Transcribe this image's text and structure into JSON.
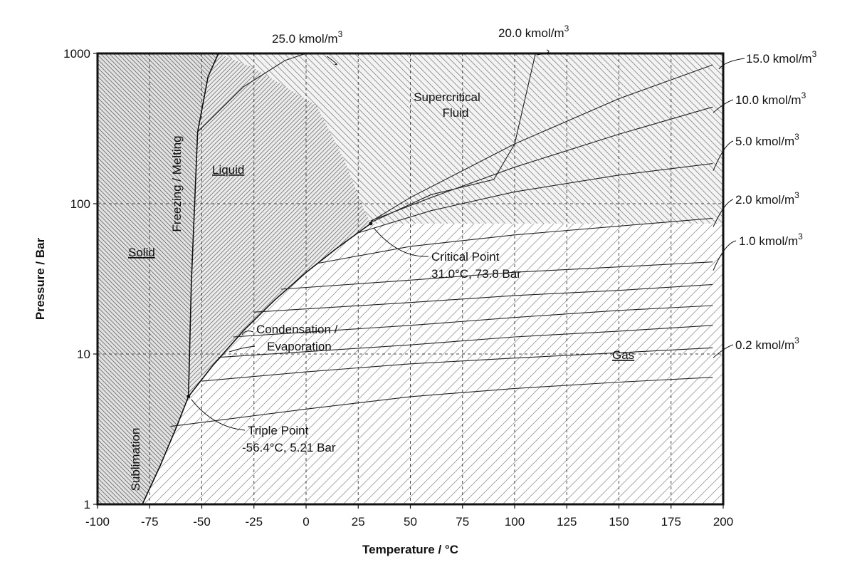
{
  "chart_data": {
    "type": "line",
    "title": "",
    "xlabel": "Temperature / °C",
    "ylabel": "Pressure / Bar",
    "xlim": [
      -100,
      200
    ],
    "ylim": [
      1,
      1000
    ],
    "y_scale": "log",
    "grid": true,
    "x_ticks": [
      "-100",
      "-75",
      "-50",
      "-25",
      "0",
      "25",
      "50",
      "75",
      "100",
      "125",
      "150",
      "175",
      "200"
    ],
    "y_ticks": [
      "1",
      "10",
      "100",
      "1000"
    ],
    "regions": [
      {
        "label": "Solid"
      },
      {
        "label": "Liquid"
      },
      {
        "label": "Supercritical Fluid"
      },
      {
        "label": "Gas"
      }
    ],
    "phase_boundaries": [
      {
        "label": "Freezing / Melting",
        "x": [
          -56.4,
          -55,
          -52,
          -47,
          -42
        ],
        "y": [
          5.21,
          30,
          300,
          700,
          1000
        ]
      },
      {
        "label": "Sublimation",
        "x": [
          -78.5,
          -70,
          -62,
          -56.4
        ],
        "y": [
          1.0,
          1.8,
          3.3,
          5.21
        ]
      },
      {
        "label": "Condensation / Evaporation",
        "x": [
          -56.4,
          -45,
          -30,
          -15,
          0,
          15,
          31.0
        ],
        "y": [
          5.21,
          8.3,
          14.3,
          22.9,
          34.9,
          50.9,
          73.8
        ]
      }
    ],
    "triple_point": {
      "label": "Triple Point",
      "detail": "-56.4°C, 5.21 Bar",
      "x": -56.4,
      "y": 5.21
    },
    "critical_point": {
      "label": "Critical Point",
      "detail": "31.0°C, 73.8 Bar",
      "x": 31.0,
      "y": 73.8
    },
    "isochores": [
      {
        "label": "25.0 kmol/m3",
        "base": "25.0 kmol/m",
        "sup": "3",
        "x": [
          -52,
          -30,
          -10,
          0,
          10
        ],
        "y": [
          300,
          600,
          900,
          1000,
          1000
        ]
      },
      {
        "label": "20.0 kmol/m3",
        "base": "20.0 kmol/m",
        "sup": "3",
        "x": [
          31,
          60,
          90,
          100,
          110
        ],
        "y": [
          75,
          115,
          145,
          250,
          1000
        ]
      },
      {
        "label": "15.0 kmol/m3",
        "base": "15.0 kmol/m",
        "sup": "3",
        "x": [
          31,
          50,
          100,
          150,
          195
        ],
        "y": [
          76,
          110,
          250,
          500,
          840
        ]
      },
      {
        "label": "10.0 kmol/m3",
        "base": "10.0 kmol/m",
        "sup": "3",
        "x": [
          31,
          60,
          100,
          150,
          195
        ],
        "y": [
          77,
          110,
          175,
          290,
          440
        ]
      },
      {
        "label": "5.0 kmol/m3",
        "base": "5.0 kmol/m",
        "sup": "3",
        "x": [
          25,
          60,
          100,
          150,
          195
        ],
        "y": [
          64,
          90,
          120,
          155,
          185
        ]
      },
      {
        "label": "2.0 kmol/m3",
        "base": "2.0 kmol/m",
        "sup": "3",
        "x": [
          5,
          50,
          100,
          150,
          195
        ],
        "y": [
          40,
          52,
          62,
          71,
          80
        ]
      },
      {
        "label": "1.0 kmol/m3",
        "base": "1.0 kmol/m",
        "sup": "3",
        "x": [
          -12,
          50,
          100,
          150,
          195
        ],
        "y": [
          27,
          31,
          35,
          38,
          41
        ]
      },
      {
        "label": "0.2 kmol/m3",
        "base": "0.2 kmol/m",
        "sup": "3",
        "x": [
          -50,
          0,
          50,
          100,
          150,
          195
        ],
        "y": [
          6.6,
          7.6,
          8.6,
          9.4,
          10.2,
          11
        ]
      }
    ],
    "other_isochores": [
      {
        "x": [
          -25,
          50,
          100,
          150,
          195
        ],
        "y": [
          19,
          22,
          24.5,
          26.5,
          29
        ]
      },
      {
        "x": [
          -35,
          50,
          100,
          150,
          195
        ],
        "y": [
          13,
          15.5,
          17.5,
          19.5,
          21
        ]
      },
      {
        "x": [
          -42,
          50,
          100,
          150,
          195
        ],
        "y": [
          9.5,
          11.5,
          13,
          14.2,
          15.5
        ]
      },
      {
        "x": [
          -65,
          0,
          50,
          100,
          150,
          195
        ],
        "y": [
          3.3,
          4.3,
          5.2,
          5.9,
          6.5,
          7
        ]
      }
    ]
  }
}
